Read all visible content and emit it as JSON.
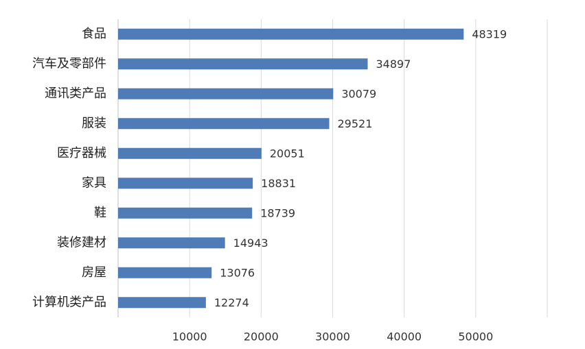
{
  "chart_data": {
    "type": "bar",
    "orientation": "horizontal",
    "categories": [
      "食品",
      "汽车及零部件",
      "通讯类产品",
      "服装",
      "医疗器械",
      "家具",
      "鞋",
      "装修建材",
      "房屋",
      "计算机类产品"
    ],
    "values": [
      48319,
      34897,
      30079,
      29521,
      20051,
      18831,
      18739,
      14943,
      13076,
      12274
    ],
    "color": "#4f7cb7",
    "xlim": [
      0,
      60000
    ],
    "xticks": [
      10000,
      20000,
      30000,
      40000,
      50000
    ],
    "grid": true
  }
}
